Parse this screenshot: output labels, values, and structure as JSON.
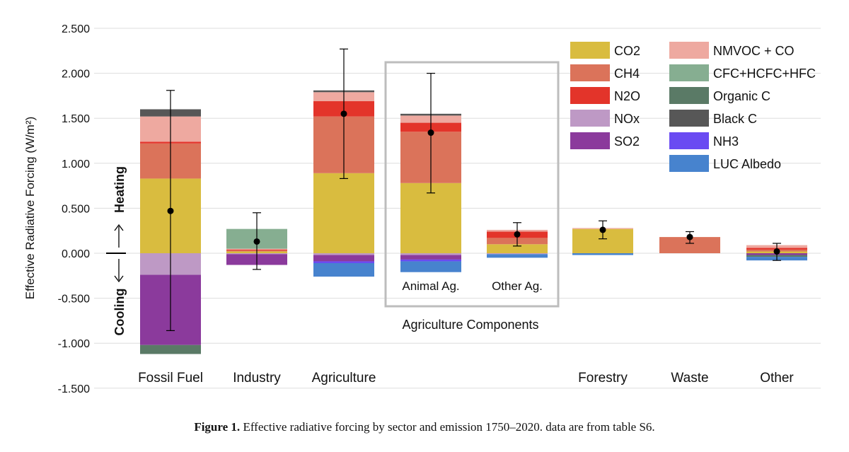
{
  "chart_data": {
    "type": "bar",
    "stacked": true,
    "ylabel": "Effective Radiative Forcing (W/m²)",
    "ylim": [
      -1.5,
      2.5
    ],
    "yticks": [
      "-1.500",
      "-1.000",
      "-0.500",
      "0.000",
      "0.500",
      "1.000",
      "1.500",
      "2.000",
      "2.500"
    ],
    "ytick_values": [
      -1.5,
      -1.0,
      -0.5,
      0.0,
      0.5,
      1.0,
      1.5,
      2.0,
      2.5
    ],
    "grid": true,
    "legend_position": "top-right",
    "heating_label": "Heating",
    "cooling_label": "Cooling",
    "group_label": "Agriculture Components",
    "legend": [
      {
        "name": "CO2",
        "color": "#D9BC3F"
      },
      {
        "name": "CH4",
        "color": "#DB735A"
      },
      {
        "name": "N2O",
        "color": "#E3342A"
      },
      {
        "name": "NOx",
        "color": "#BE99C5"
      },
      {
        "name": "SO2",
        "color": "#8B3A9C"
      },
      {
        "name": "NMVOC + CO",
        "color": "#EEA9A0"
      },
      {
        "name": "CFC+HCFC+HFC",
        "color": "#86AE91"
      },
      {
        "name": "Organic C",
        "color": "#5A7A66"
      },
      {
        "name": "Black C",
        "color": "#575757"
      },
      {
        "name": "NH3",
        "color": "#6A4BF2"
      },
      {
        "name": "LUC Albedo",
        "color": "#4783CE"
      }
    ],
    "categories": [
      {
        "label": "Fossil Fuel",
        "net": 0.47,
        "err_low": -0.86,
        "err_high": 1.81,
        "positive": [
          [
            "CO2",
            0.83
          ],
          [
            "CH4",
            0.39
          ],
          [
            "N2O",
            0.02
          ],
          [
            "NMVOC + CO",
            0.28
          ],
          [
            "Black C",
            0.08
          ]
        ],
        "negative": [
          [
            "NOx",
            -0.24
          ],
          [
            "SO2",
            -0.78
          ],
          [
            "Organic C",
            -0.1
          ]
        ]
      },
      {
        "label": "Industry",
        "net": 0.13,
        "err_low": -0.18,
        "err_high": 0.45,
        "positive": [
          [
            "CO2",
            0.02
          ],
          [
            "CH4",
            0.01
          ],
          [
            "N2O",
            0.01
          ],
          [
            "NMVOC + CO",
            0.01
          ],
          [
            "CFC+HCFC+HFC",
            0.22
          ]
        ],
        "negative": [
          [
            "NOx",
            -0.01
          ],
          [
            "SO2",
            -0.12
          ]
        ]
      },
      {
        "label": "Agriculture",
        "net": 1.55,
        "err_low": 0.83,
        "err_high": 2.27,
        "positive": [
          [
            "CO2",
            0.89
          ],
          [
            "CH4",
            0.63
          ],
          [
            "N2O",
            0.17
          ],
          [
            "NMVOC + CO",
            0.1
          ],
          [
            "Black C",
            0.02
          ]
        ],
        "negative": [
          [
            "NOx",
            -0.02
          ],
          [
            "SO2",
            -0.07
          ],
          [
            "NH3",
            -0.02
          ],
          [
            "LUC Albedo",
            -0.15
          ]
        ]
      },
      {
        "label": "Animal Ag.",
        "net": 1.34,
        "err_low": 0.67,
        "err_high": 2.0,
        "positive": [
          [
            "CO2",
            0.78
          ],
          [
            "CH4",
            0.57
          ],
          [
            "N2O",
            0.1
          ],
          [
            "NMVOC + CO",
            0.08
          ],
          [
            "Black C",
            0.02
          ]
        ],
        "negative": [
          [
            "NOx",
            -0.02
          ],
          [
            "SO2",
            -0.05
          ],
          [
            "NH3",
            -0.02
          ],
          [
            "LUC Albedo",
            -0.12
          ]
        ]
      },
      {
        "label": "Other Ag.",
        "net": 0.21,
        "err_low": 0.08,
        "err_high": 0.34,
        "positive": [
          [
            "CO2",
            0.1
          ],
          [
            "CH4",
            0.07
          ],
          [
            "N2O",
            0.07
          ],
          [
            "NMVOC + CO",
            0.02
          ]
        ],
        "negative": [
          [
            "NOx",
            -0.01
          ],
          [
            "LUC Albedo",
            -0.04
          ]
        ]
      },
      {
        "label": "Forestry",
        "net": 0.26,
        "err_low": 0.16,
        "err_high": 0.36,
        "positive": [
          [
            "CO2",
            0.27
          ],
          [
            "NMVOC + CO",
            0.01
          ]
        ],
        "negative": [
          [
            "LUC Albedo",
            -0.02
          ]
        ]
      },
      {
        "label": "Waste",
        "net": 0.18,
        "err_low": 0.11,
        "err_high": 0.24,
        "positive": [
          [
            "CH4",
            0.18
          ]
        ],
        "negative": []
      },
      {
        "label": "Other",
        "net": 0.02,
        "err_low": -0.08,
        "err_high": 0.11,
        "positive": [
          [
            "CO2",
            0.02
          ],
          [
            "CH4",
            0.02
          ],
          [
            "N2O",
            0.02
          ],
          [
            "NMVOC + CO",
            0.03
          ]
        ],
        "negative": [
          [
            "SO2",
            -0.02
          ],
          [
            "Organic C",
            -0.02
          ],
          [
            "LUC Albedo",
            -0.04
          ]
        ]
      }
    ]
  },
  "caption": {
    "label": "Figure 1.",
    "text": " Effective radiative forcing by sector and emission 1750–2020. data are from table S6."
  }
}
